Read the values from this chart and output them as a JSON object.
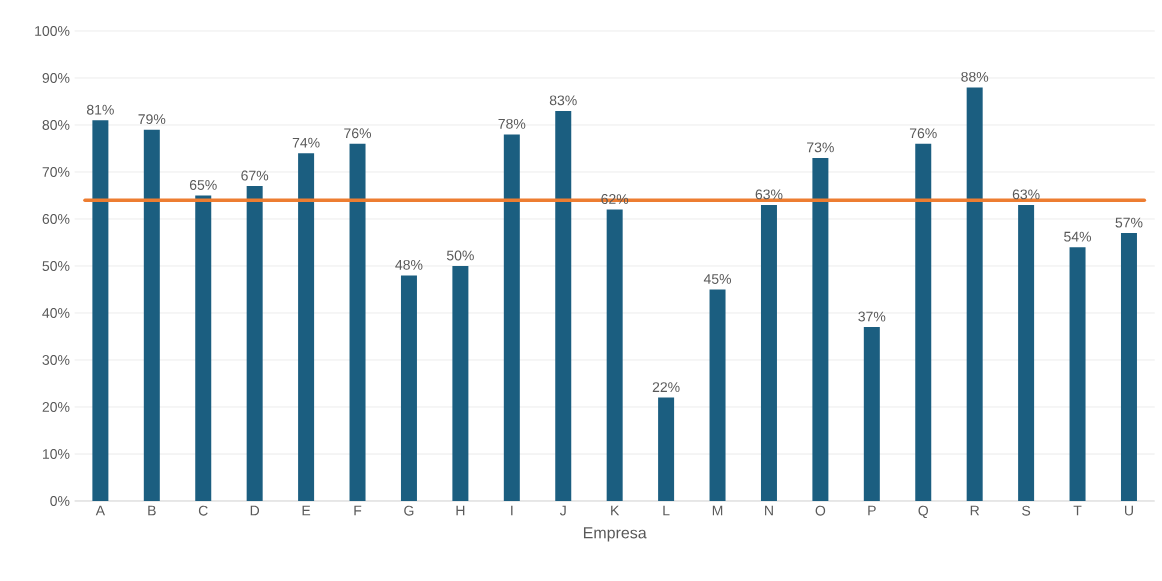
{
  "chart_data": {
    "type": "bar",
    "xlabel": "Empresa",
    "categories": [
      "A",
      "B",
      "C",
      "D",
      "E",
      "F",
      "G",
      "H",
      "I",
      "J",
      "K",
      "L",
      "M",
      "N",
      "O",
      "P",
      "Q",
      "R",
      "S",
      "T",
      "U"
    ],
    "values": [
      81,
      79,
      65,
      67,
      74,
      76,
      48,
      50,
      78,
      83,
      62,
      22,
      45,
      63,
      73,
      37,
      76,
      88,
      63,
      54,
      57
    ],
    "value_labels": [
      "81%",
      "79%",
      "65%",
      "67%",
      "74%",
      "76%",
      "48%",
      "50%",
      "78%",
      "83%",
      "62%",
      "22%",
      "45%",
      "63%",
      "73%",
      "37%",
      "76%",
      "88%",
      "63%",
      "54%",
      "57%"
    ],
    "color": "#1b5e80",
    "ylim": [
      0,
      100
    ],
    "yticks": [
      {
        "value": 0,
        "label": "0%"
      },
      {
        "value": 10,
        "label": "10%"
      },
      {
        "value": 20,
        "label": "20%"
      },
      {
        "value": 30,
        "label": "30%"
      },
      {
        "value": 40,
        "label": "40%"
      },
      {
        "value": 50,
        "label": "50%"
      },
      {
        "value": 60,
        "label": "60%"
      },
      {
        "value": 70,
        "label": "70%"
      },
      {
        "value": 80,
        "label": "80%"
      },
      {
        "value": 90,
        "label": "90%"
      },
      {
        "value": 100,
        "label": "100%"
      }
    ],
    "grid": "y",
    "ref_lines": [
      {
        "axis": "y",
        "value": 64,
        "color": "#ed7d31"
      }
    ]
  }
}
